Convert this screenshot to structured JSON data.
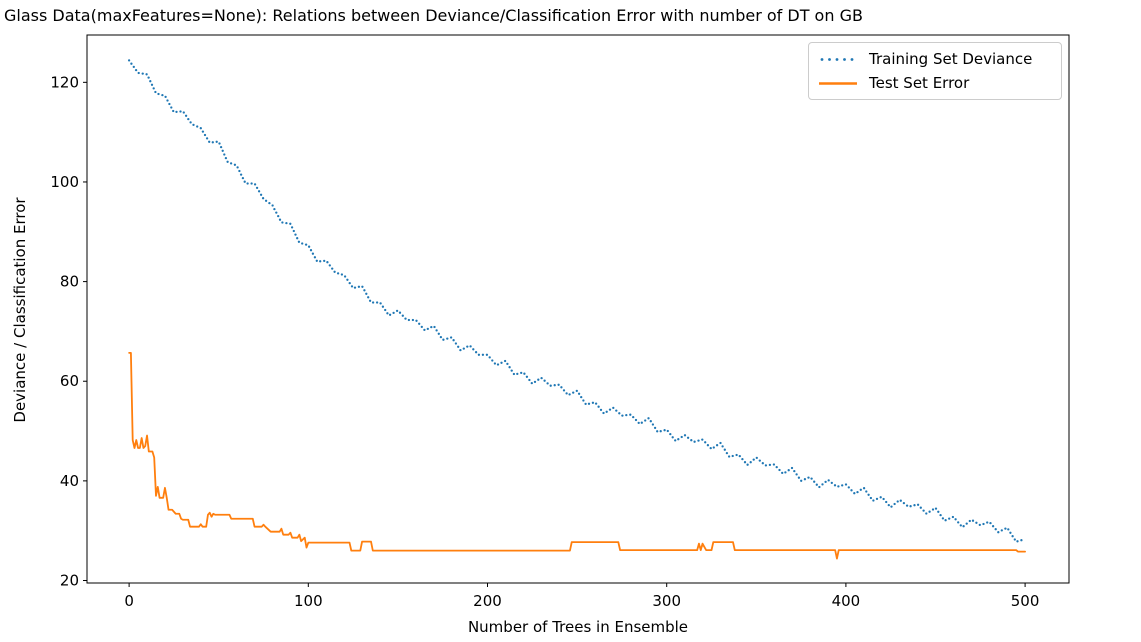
{
  "chart_data": {
    "type": "line",
    "title": "Glass Data(maxFeatures=None): Relations between Deviance/Classification Error with number of DT on GB",
    "xlabel": "Number of Trees in Ensemble",
    "ylabel": "Deviance / Classification Error",
    "xlim": [
      -23.5,
      524.5
    ],
    "ylim": [
      19.5,
      129.5
    ],
    "x_ticks": [
      0,
      100,
      200,
      300,
      400,
      500
    ],
    "y_ticks": [
      20,
      40,
      60,
      80,
      100,
      120
    ],
    "grid": false,
    "background_color": "#ffffff",
    "axes_edge_color": "#000000",
    "legend": {
      "position": "upper right",
      "entries": [
        {
          "label": "Training Set Deviance",
          "color": "#1f77b4",
          "style": "dotted"
        },
        {
          "label": "Test Set Error",
          "color": "#ff7f0e",
          "style": "solid"
        }
      ]
    },
    "series": [
      {
        "name": "Training Set Deviance",
        "color": "#1f77b4",
        "style": "dotted",
        "points": [
          [
            0,
            124.4
          ],
          [
            5,
            121.9
          ],
          [
            10,
            121.6
          ],
          [
            15,
            117.8
          ],
          [
            20,
            117.3
          ],
          [
            25,
            114.0
          ],
          [
            30,
            114.2
          ],
          [
            35,
            111.6
          ],
          [
            40,
            110.8
          ],
          [
            45,
            107.9
          ],
          [
            50,
            108.1
          ],
          [
            55,
            104.0
          ],
          [
            60,
            103.3
          ],
          [
            65,
            99.7
          ],
          [
            70,
            99.7
          ],
          [
            75,
            96.6
          ],
          [
            80,
            95.3
          ],
          [
            85,
            91.9
          ],
          [
            90,
            91.6
          ],
          [
            95,
            87.8
          ],
          [
            100,
            87.3
          ],
          [
            105,
            84.0
          ],
          [
            110,
            84.2
          ],
          [
            115,
            81.8
          ],
          [
            120,
            81.3
          ],
          [
            125,
            78.7
          ],
          [
            130,
            79.1
          ],
          [
            135,
            75.8
          ],
          [
            140,
            75.8
          ],
          [
            145,
            73.2
          ],
          [
            150,
            74.2
          ],
          [
            155,
            72.3
          ],
          [
            160,
            72.3
          ],
          [
            165,
            70.2
          ],
          [
            170,
            71.1
          ],
          [
            175,
            68.3
          ],
          [
            180,
            68.8
          ],
          [
            185,
            66.2
          ],
          [
            190,
            67.2
          ],
          [
            195,
            65.3
          ],
          [
            200,
            65.3
          ],
          [
            205,
            63.2
          ],
          [
            210,
            64.1
          ],
          [
            215,
            61.3
          ],
          [
            220,
            61.8
          ],
          [
            225,
            59.5
          ],
          [
            230,
            60.7
          ],
          [
            235,
            59.1
          ],
          [
            240,
            59.3
          ],
          [
            245,
            57.2
          ],
          [
            250,
            58.1
          ],
          [
            255,
            55.3
          ],
          [
            260,
            55.8
          ],
          [
            265,
            53.5
          ],
          [
            270,
            54.7
          ],
          [
            275,
            53.1
          ],
          [
            280,
            53.3
          ],
          [
            285,
            51.4
          ],
          [
            290,
            52.6
          ],
          [
            295,
            49.8
          ],
          [
            300,
            50.3
          ],
          [
            305,
            48.0
          ],
          [
            310,
            49.2
          ],
          [
            315,
            47.8
          ],
          [
            320,
            48.3
          ],
          [
            325,
            46.4
          ],
          [
            330,
            47.6
          ],
          [
            335,
            44.8
          ],
          [
            340,
            45.3
          ],
          [
            345,
            43.2
          ],
          [
            350,
            44.7
          ],
          [
            355,
            43.1
          ],
          [
            360,
            43.3
          ],
          [
            365,
            41.4
          ],
          [
            370,
            42.6
          ],
          [
            375,
            40.0
          ],
          [
            380,
            40.8
          ],
          [
            385,
            38.7
          ],
          [
            390,
            40.2
          ],
          [
            395,
            38.8
          ],
          [
            400,
            39.3
          ],
          [
            405,
            37.4
          ],
          [
            410,
            38.6
          ],
          [
            415,
            36.0
          ],
          [
            420,
            36.8
          ],
          [
            425,
            34.7
          ],
          [
            430,
            36.2
          ],
          [
            435,
            34.8
          ],
          [
            440,
            35.3
          ],
          [
            445,
            33.4
          ],
          [
            450,
            34.6
          ],
          [
            455,
            32.0
          ],
          [
            460,
            32.8
          ],
          [
            465,
            30.7
          ],
          [
            470,
            32.2
          ],
          [
            475,
            31.1
          ],
          [
            480,
            31.8
          ],
          [
            485,
            29.7
          ],
          [
            490,
            30.6
          ],
          [
            495,
            27.8
          ],
          [
            500,
            28.3
          ]
        ]
      },
      {
        "name": "Test Set Error",
        "color": "#ff7f0e",
        "style": "solid",
        "points": [
          [
            0,
            65.7
          ],
          [
            1,
            65.7
          ],
          [
            2,
            48.2
          ],
          [
            3,
            46.6
          ],
          [
            4,
            48.2
          ],
          [
            5,
            46.6
          ],
          [
            6,
            46.6
          ],
          [
            7,
            48.6
          ],
          [
            8,
            46.6
          ],
          [
            9,
            47.0
          ],
          [
            10,
            49.1
          ],
          [
            11,
            45.9
          ],
          [
            13,
            45.9
          ],
          [
            14,
            44.7
          ],
          [
            15,
            37.0
          ],
          [
            16,
            38.8
          ],
          [
            17,
            36.6
          ],
          [
            19,
            36.6
          ],
          [
            20,
            38.6
          ],
          [
            21,
            36.6
          ],
          [
            22,
            34.2
          ],
          [
            24,
            34.2
          ],
          [
            25,
            33.8
          ],
          [
            26,
            33.4
          ],
          [
            28,
            33.4
          ],
          [
            29,
            32.4
          ],
          [
            30,
            32.2
          ],
          [
            33,
            32.2
          ],
          [
            34,
            30.8
          ],
          [
            39,
            30.8
          ],
          [
            40,
            31.3
          ],
          [
            41,
            30.8
          ],
          [
            43,
            30.8
          ],
          [
            44,
            33.2
          ],
          [
            45,
            33.6
          ],
          [
            46,
            32.8
          ],
          [
            47,
            33.4
          ],
          [
            48,
            33.2
          ],
          [
            56,
            33.2
          ],
          [
            57,
            32.4
          ],
          [
            69,
            32.4
          ],
          [
            70,
            30.8
          ],
          [
            74,
            30.8
          ],
          [
            75,
            31.2
          ],
          [
            76,
            30.8
          ],
          [
            79,
            29.8
          ],
          [
            84,
            29.8
          ],
          [
            85,
            30.4
          ],
          [
            86,
            29.2
          ],
          [
            89,
            29.2
          ],
          [
            90,
            29.6
          ],
          [
            91,
            28.6
          ],
          [
            94,
            28.6
          ],
          [
            95,
            29.2
          ],
          [
            96,
            27.9
          ],
          [
            98,
            28.6
          ],
          [
            99,
            26.6
          ],
          [
            100,
            27.6
          ],
          [
            123,
            27.6
          ],
          [
            124,
            26.0
          ],
          [
            129,
            26.0
          ],
          [
            130,
            27.8
          ],
          [
            135,
            27.8
          ],
          [
            136,
            26.0
          ],
          [
            246,
            26.0
          ],
          [
            247,
            27.7
          ],
          [
            273,
            27.7
          ],
          [
            274,
            26.1
          ],
          [
            317,
            26.1
          ],
          [
            318,
            27.4
          ],
          [
            319,
            26.1
          ],
          [
            320,
            27.4
          ],
          [
            322,
            26.1
          ],
          [
            325,
            26.1
          ],
          [
            326,
            27.7
          ],
          [
            337,
            27.7
          ],
          [
            338,
            26.1
          ],
          [
            394,
            26.1
          ],
          [
            395,
            24.4
          ],
          [
            396,
            26.1
          ],
          [
            495,
            26.1
          ],
          [
            496,
            25.8
          ],
          [
            500,
            25.8
          ]
        ]
      }
    ]
  }
}
